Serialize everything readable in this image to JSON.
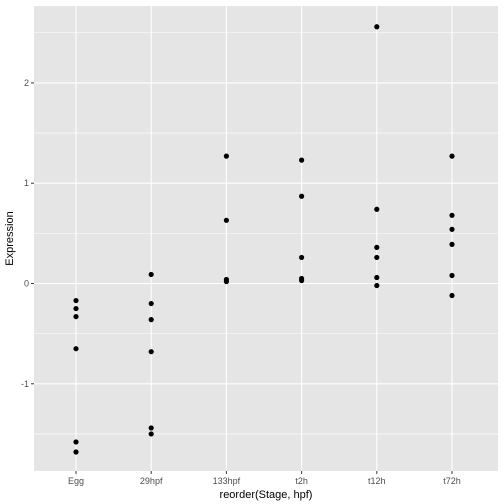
{
  "chart_data": {
    "type": "scatter",
    "title": "",
    "xlabel": "reorder(Stage, hpf)",
    "ylabel": "Expression",
    "categories": [
      "Egg",
      "29hpf",
      "133hpf",
      "t2h",
      "t12h",
      "t72h"
    ],
    "ylim": [
      -1.75,
      2.58
    ],
    "yticks": [
      -1,
      0,
      1,
      2
    ],
    "grid": true,
    "panel_background": "#e5e5e5",
    "grid_color": "#ffffff",
    "point_color": "#000000",
    "points": [
      {
        "x": "Egg",
        "y": -0.17
      },
      {
        "x": "Egg",
        "y": -0.25
      },
      {
        "x": "Egg",
        "y": -0.33
      },
      {
        "x": "Egg",
        "y": -0.65
      },
      {
        "x": "Egg",
        "y": -1.58
      },
      {
        "x": "Egg",
        "y": -1.68
      },
      {
        "x": "29hpf",
        "y": 0.09
      },
      {
        "x": "29hpf",
        "y": -0.2
      },
      {
        "x": "29hpf",
        "y": -0.36
      },
      {
        "x": "29hpf",
        "y": -0.68
      },
      {
        "x": "29hpf",
        "y": -1.44
      },
      {
        "x": "29hpf",
        "y": -1.5
      },
      {
        "x": "133hpf",
        "y": 1.27
      },
      {
        "x": "133hpf",
        "y": 0.63
      },
      {
        "x": "133hpf",
        "y": 0.04
      },
      {
        "x": "133hpf",
        "y": 0.02
      },
      {
        "x": "t2h",
        "y": 1.23
      },
      {
        "x": "t2h",
        "y": 0.87
      },
      {
        "x": "t2h",
        "y": 0.26
      },
      {
        "x": "t2h",
        "y": 0.05
      },
      {
        "x": "t2h",
        "y": 0.03
      },
      {
        "x": "t12h",
        "y": 2.56
      },
      {
        "x": "t12h",
        "y": 0.74
      },
      {
        "x": "t12h",
        "y": 0.36
      },
      {
        "x": "t12h",
        "y": 0.26
      },
      {
        "x": "t12h",
        "y": 0.06
      },
      {
        "x": "t12h",
        "y": -0.02
      },
      {
        "x": "t72h",
        "y": 1.27
      },
      {
        "x": "t72h",
        "y": 0.68
      },
      {
        "x": "t72h",
        "y": 0.54
      },
      {
        "x": "t72h",
        "y": 0.39
      },
      {
        "x": "t72h",
        "y": 0.08
      },
      {
        "x": "t72h",
        "y": -0.12
      }
    ]
  }
}
